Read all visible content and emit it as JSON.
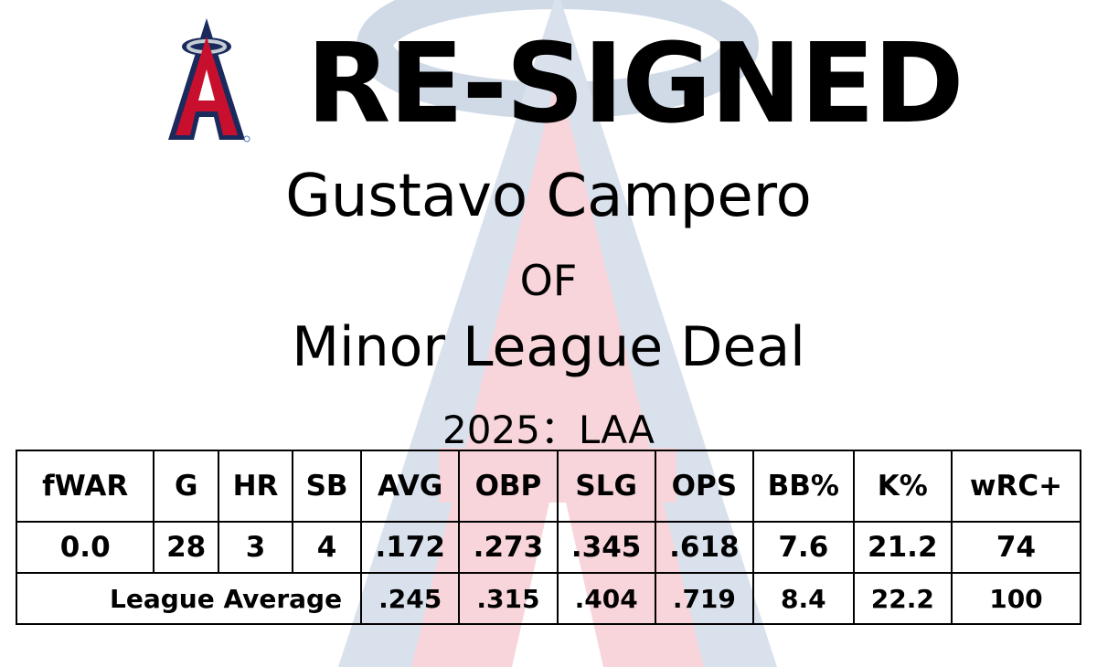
{
  "logo": {
    "name": "Los Angeles Angels logo",
    "colors": {
      "navy": "#1b2a5c",
      "red": "#c8102e",
      "halo": "#c4ced4"
    }
  },
  "headline": "RE-SIGNED",
  "player": {
    "name": "Gustavo Campero",
    "position": "OF",
    "deal": "Minor League Deal",
    "season": "2025：LAA"
  },
  "table": {
    "headers": [
      "fWAR",
      "G",
      "HR",
      "SB",
      "AVG",
      "OBP",
      "SLG",
      "OPS",
      "BB%",
      "K%",
      "wRC+"
    ],
    "player_row": [
      "0.0",
      "28",
      "3",
      "4",
      ".172",
      ".273",
      ".345",
      ".618",
      "7.6",
      "21.2",
      "74"
    ],
    "league_label": "League Average",
    "league_row": [
      ".245",
      ".315",
      ".404",
      ".719",
      "8.4",
      "22.2",
      "100"
    ]
  }
}
